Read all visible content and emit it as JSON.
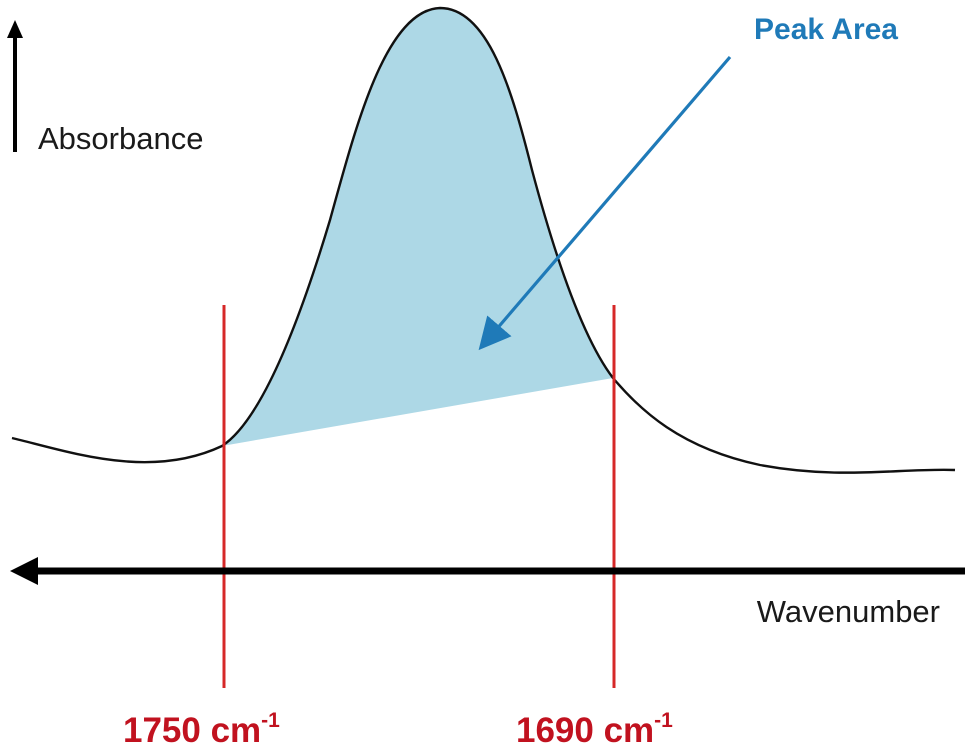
{
  "labels": {
    "y_axis": "Absorbance",
    "x_axis": "Wavenumber",
    "peak_area": "Peak Area",
    "left_bound": {
      "value": "1750 cm",
      "exponent": "-1"
    },
    "right_bound": {
      "value": "1690 cm",
      "exponent": "-1"
    }
  },
  "colors": {
    "curve": "#111111",
    "fill": "#add8e6",
    "bound_lines": "#d62828",
    "bound_labels": "#c1121f",
    "peak_label": "#1f7ab8",
    "arrow": "#1f7ab8",
    "axis": "#000000"
  }
}
